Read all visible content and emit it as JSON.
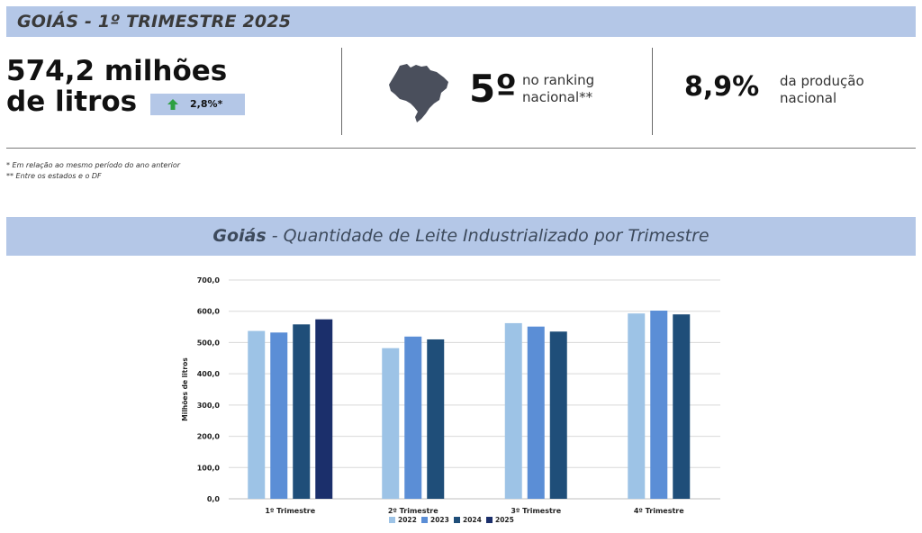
{
  "header": {
    "title": "GOIÁS - 1º TRIMESTRE 2025"
  },
  "kpi": {
    "volume_line1": "574,2 milhões",
    "volume_line2": "de litros",
    "growth": "2,8%*",
    "rank_value": "5º",
    "rank_line1": "no ranking",
    "rank_line2": "nacional**",
    "share_value": "8,9%",
    "share_line1": "da produção",
    "share_line2": "nacional"
  },
  "footnotes": {
    "note1": "* Em relação ao mesmo período do ano anterior",
    "note2": "** Entre os estados e o DF"
  },
  "chart_title": {
    "bold": "Goiás",
    "rest": " - Quantidade de Leite Industrializado por Trimestre"
  },
  "colors": {
    "band": "#b4c7e7",
    "arrow": "#2ea043",
    "map": "#4a4f5c"
  },
  "icons": {
    "map": "brazil-map-icon",
    "growth": "up-arrow-icon"
  },
  "chart_data": {
    "type": "bar",
    "categories": [
      "1º Trimestre",
      "2º Trimestre",
      "3º Trimestre",
      "4º Trimestre"
    ],
    "series": [
      {
        "name": "2022",
        "color": "#9dc3e6",
        "values": [
          537.0,
          482.0,
          562.0,
          593.0
        ]
      },
      {
        "name": "2023",
        "color": "#5b8ed6",
        "values": [
          532.0,
          519.0,
          551.0,
          602.0
        ]
      },
      {
        "name": "2024",
        "color": "#1f4e79",
        "values": [
          558.0,
          510.0,
          535.0,
          590.0
        ]
      },
      {
        "name": "2025",
        "color": "#1b2f6b",
        "values": [
          574.2,
          null,
          null,
          null
        ]
      }
    ],
    "ylabel": "Milhões de litros",
    "ylim": [
      0,
      700
    ],
    "yticks": [
      "0,0",
      "100,0",
      "200,0",
      "300,0",
      "400,0",
      "500,0",
      "600,0",
      "700,0"
    ],
    "grid": true,
    "legend_position": "bottom"
  }
}
